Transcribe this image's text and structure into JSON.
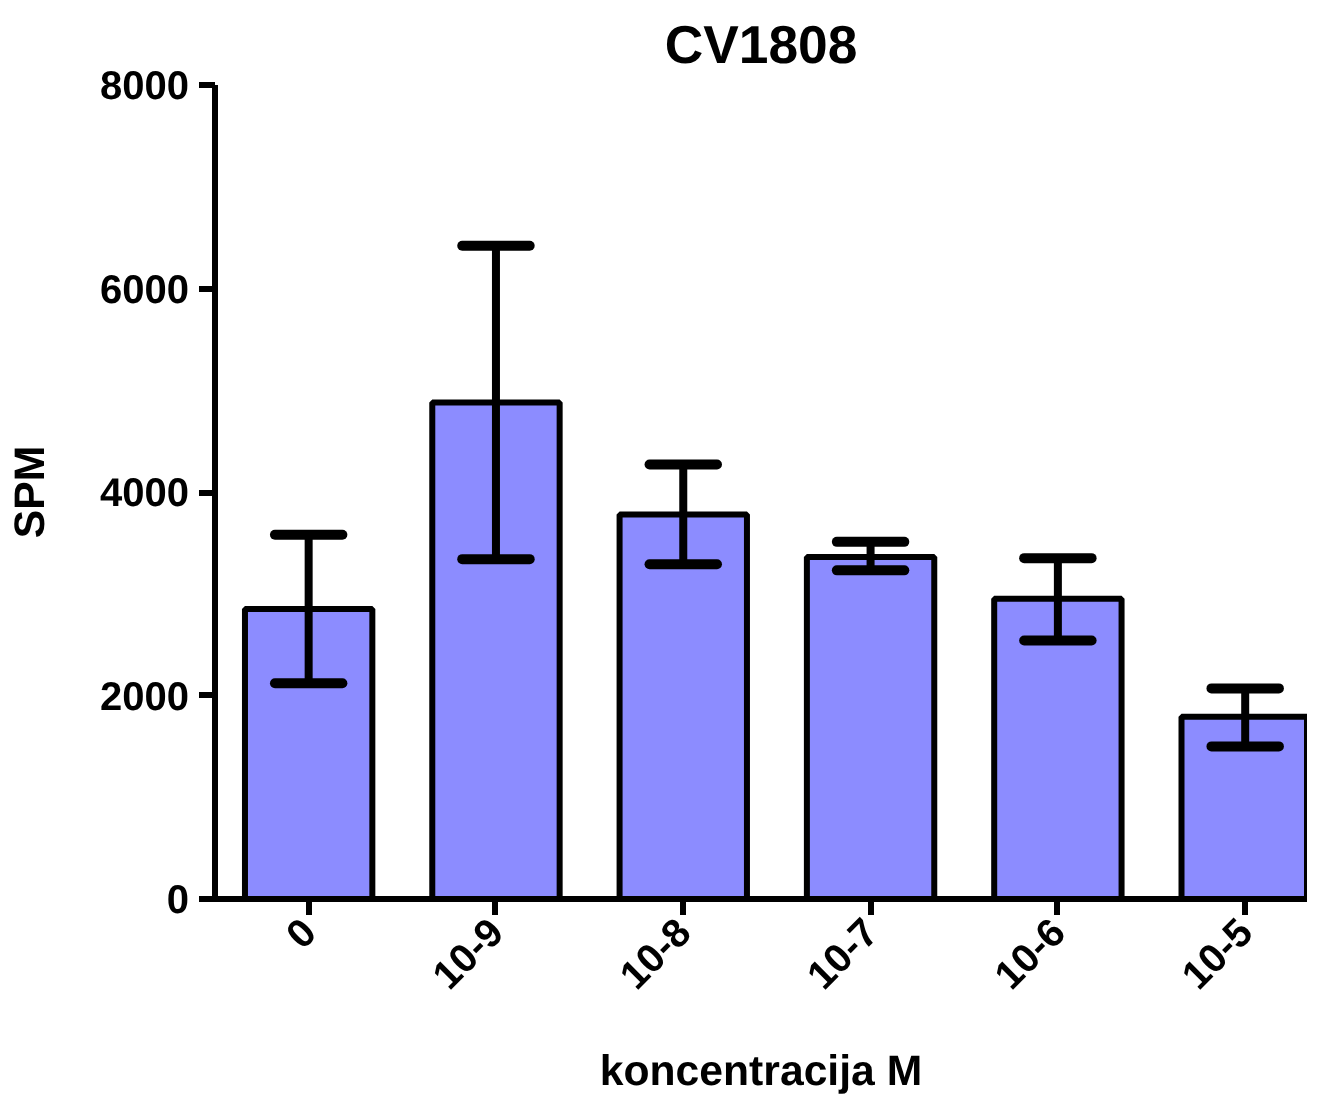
{
  "chart_data": {
    "type": "bar",
    "title": "CV1808",
    "xlabel": "koncentracija M",
    "ylabel": "SPM",
    "categories": [
      "0",
      "10-9",
      "10-8",
      "10-7",
      "10-6",
      "10-5"
    ],
    "values": [
      2850,
      4880,
      3780,
      3360,
      2950,
      1790
    ],
    "errors": [
      [
        2120,
        3580
      ],
      [
        3340,
        6420
      ],
      [
        3290,
        4270
      ],
      [
        3230,
        3510
      ],
      [
        2540,
        3350
      ],
      [
        1500,
        2070
      ]
    ],
    "color": "#8c8cff",
    "ylim": [
      0,
      8000
    ],
    "yticks": [
      0,
      2000,
      4000,
      6000,
      8000
    ],
    "grid": false
  }
}
